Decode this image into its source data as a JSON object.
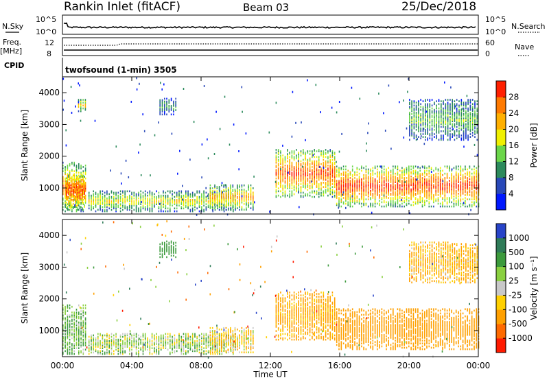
{
  "header": {
    "station": "Rankin Inlet (fitACF)",
    "beam": "Beam 03",
    "date": "25/Dec/2018"
  },
  "top_panel": {
    "left_label": "N.Sky",
    "left_ticks": [
      "10^5",
      "10^0"
    ],
    "right_ticks": [
      "10^5",
      "10^0"
    ],
    "right_label": "N.Search"
  },
  "freq_panel": {
    "left_label_1": "Freq.",
    "left_label_2": "[MHz]",
    "left_ticks": [
      "12",
      "8"
    ],
    "right_ticks": [
      "60",
      "0"
    ],
    "right_label": "Nave"
  },
  "cpid": {
    "label": "CPID",
    "program": "twofsound (1-min) 3505"
  },
  "chart_data": [
    {
      "type": "heatmap",
      "title": "",
      "xlabel": "Time UT",
      "ylabel": "Slant Range [km]",
      "x_ticks": [
        "00:00",
        "04:00",
        "08:00",
        "12:00",
        "16:00",
        "20:00",
        "00:00"
      ],
      "y_ticks": [
        "1000",
        "2000",
        "3000",
        "4000"
      ],
      "ylim": [
        180,
        4500
      ],
      "colorbar": {
        "label": "Power [dB]",
        "ticks": [
          "4",
          "8",
          "12",
          "16",
          "20",
          "24",
          "28"
        ],
        "range": [
          0,
          30
        ],
        "colors": [
          "#0018ff",
          "#2848b8",
          "#2c8a5c",
          "#6bd64a",
          "#f0f000",
          "#ffb000",
          "#ff7a00",
          "#ff2000"
        ]
      },
      "regions": [
        {
          "t": [
            0.0,
            1.4
          ],
          "r": [
            250,
            1800
          ],
          "value": 22
        },
        {
          "t": [
            0.2,
            1.3
          ],
          "r": [
            300,
            1400
          ],
          "value": 28
        },
        {
          "t": [
            1.5,
            10.0
          ],
          "r": [
            250,
            900
          ],
          "value": 16
        },
        {
          "t": [
            8.5,
            11.0
          ],
          "r": [
            300,
            1100
          ],
          "value": 20
        },
        {
          "t": [
            12.3,
            15.8
          ],
          "r": [
            700,
            2200
          ],
          "value": 25
        },
        {
          "t": [
            15.8,
            24.0
          ],
          "r": [
            400,
            1700
          ],
          "value": 26
        },
        {
          "t": [
            5.6,
            6.6
          ],
          "r": [
            3300,
            3800
          ],
          "value": 10
        },
        {
          "t": [
            0.9,
            1.4
          ],
          "r": [
            3400,
            3800
          ],
          "value": 18
        },
        {
          "t": [
            20.0,
            24.0
          ],
          "r": [
            2500,
            3800
          ],
          "value": 12
        }
      ]
    },
    {
      "type": "heatmap",
      "title": "",
      "xlabel": "Time UT",
      "ylabel": "Slant Range [km]",
      "x_ticks": [
        "00:00",
        "04:00",
        "08:00",
        "12:00",
        "16:00",
        "20:00",
        "00:00"
      ],
      "y_ticks": [
        "1000",
        "2000",
        "3000",
        "4000"
      ],
      "ylim": [
        180,
        4500
      ],
      "colorbar": {
        "label": "Velocity [m s⁻¹]",
        "ticks": [
          "1000",
          "500",
          "100",
          "25",
          "-25",
          "-100",
          "-500",
          "-1000"
        ],
        "colors": [
          "#2844c8",
          "#2f7b58",
          "#3c9a3c",
          "#8ad040",
          "#c8c8c8",
          "#ffd000",
          "#ffa000",
          "#ff6a00",
          "#ff1a00"
        ]
      },
      "regions": [
        {
          "t": [
            0.0,
            1.4
          ],
          "r": [
            250,
            1800
          ],
          "value": 100
        },
        {
          "t": [
            1.5,
            10.0
          ],
          "r": [
            250,
            900
          ],
          "value": 50
        },
        {
          "t": [
            8.5,
            11.0
          ],
          "r": [
            300,
            1100
          ],
          "value": -60
        },
        {
          "t": [
            12.3,
            15.8
          ],
          "r": [
            700,
            2200
          ],
          "value": -150
        },
        {
          "t": [
            15.8,
            24.0
          ],
          "r": [
            400,
            1700
          ],
          "value": -250
        },
        {
          "t": [
            5.6,
            6.6
          ],
          "r": [
            3300,
            3800
          ],
          "value": 300
        },
        {
          "t": [
            20.0,
            24.0
          ],
          "r": [
            2500,
            3800
          ],
          "value": -120
        }
      ]
    }
  ]
}
